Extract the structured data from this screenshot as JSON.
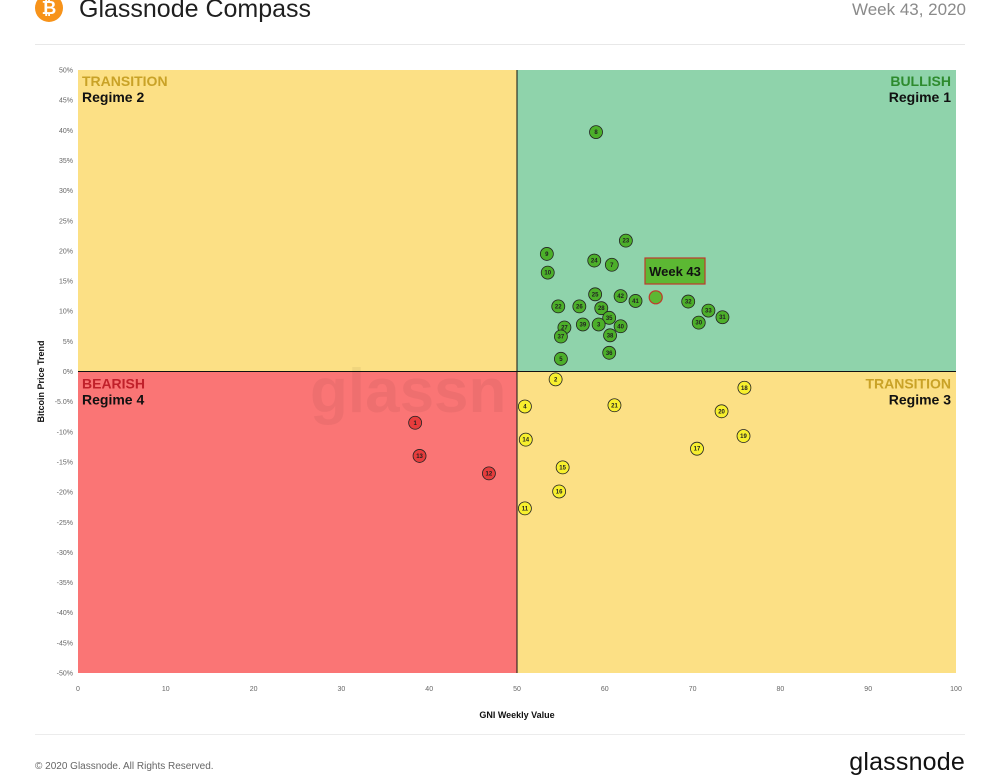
{
  "header": {
    "title": "Glassnode Compass",
    "week": "Week 43, 2020",
    "logo_icon": "bitcoin-icon"
  },
  "footer": {
    "copyright": "© 2020 Glassnode. All Rights Reserved.",
    "brand": "glassnode"
  },
  "watermark": "glassn",
  "colors": {
    "bullish": "#8fd3ab",
    "transition": "#fce085",
    "bearish": "#fa7575",
    "green_point": "#4caf2a",
    "yellow_point": "#f7ef2e",
    "red_point": "#e63c3c",
    "highlight_box": "#5cb833",
    "highlight_border": "#c0392b"
  },
  "chart_data": {
    "type": "scatter",
    "xlabel": "GNI  Weekly Value",
    "ylabel": "Bitcoin  Price Trend",
    "xlim": [
      0,
      100
    ],
    "ylim": [
      -50,
      50
    ],
    "x_ticks": [
      "0",
      "10",
      "20",
      "30",
      "40",
      "50",
      "60",
      "70",
      "80",
      "90",
      "100"
    ],
    "y_ticks": [
      "50%",
      "45%",
      "40%",
      "35%",
      "30%",
      "25%",
      "20%",
      "15%",
      "10%",
      "5%",
      "0%",
      "-5.0%",
      "-10%",
      "-15%",
      "-20%",
      "-25%",
      "-30%",
      "-35%",
      "-40%",
      "-45%",
      "-50%"
    ],
    "quadrants": [
      {
        "name": "top-left",
        "title": "TRANSITION",
        "subtitle": "Regime 2",
        "title_color": "#c9a227",
        "fill": "#fce085"
      },
      {
        "name": "top-right",
        "title": "BULLISH",
        "subtitle": "Regime 1",
        "title_color": "#2e8b2e",
        "fill": "#8fd3ab"
      },
      {
        "name": "bottom-left",
        "title": "BEARISH",
        "subtitle": "Regime 4",
        "title_color": "#c0202a",
        "fill": "#fa7575"
      },
      {
        "name": "bottom-right",
        "title": "TRANSITION",
        "subtitle": "Regime 3",
        "title_color": "#c9a227",
        "fill": "#fce085"
      }
    ],
    "points": [
      {
        "label": "8",
        "x": 59.0,
        "y": 39.7,
        "regime": "bullish"
      },
      {
        "label": "23",
        "x": 62.4,
        "y": 21.7,
        "regime": "bullish"
      },
      {
        "label": "9",
        "x": 53.4,
        "y": 19.5,
        "regime": "bullish"
      },
      {
        "label": "24",
        "x": 58.8,
        "y": 18.4,
        "regime": "bullish"
      },
      {
        "label": "7",
        "x": 60.8,
        "y": 17.7,
        "regime": "bullish"
      },
      {
        "label": "10",
        "x": 53.5,
        "y": 16.4,
        "regime": "bullish"
      },
      {
        "label": "25",
        "x": 58.9,
        "y": 12.8,
        "regime": "bullish"
      },
      {
        "label": "42",
        "x": 61.8,
        "y": 12.5,
        "regime": "bullish"
      },
      {
        "label": "41",
        "x": 63.5,
        "y": 11.7,
        "regime": "bullish"
      },
      {
        "label": "32",
        "x": 69.5,
        "y": 11.6,
        "regime": "bullish"
      },
      {
        "label": "22",
        "x": 54.7,
        "y": 10.8,
        "regime": "bullish"
      },
      {
        "label": "26",
        "x": 57.1,
        "y": 10.8,
        "regime": "bullish"
      },
      {
        "label": "28",
        "x": 59.6,
        "y": 10.5,
        "regime": "bullish"
      },
      {
        "label": "33",
        "x": 71.8,
        "y": 10.1,
        "regime": "bullish"
      },
      {
        "label": "35",
        "x": 60.5,
        "y": 8.9,
        "regime": "bullish"
      },
      {
        "label": "31",
        "x": 73.4,
        "y": 9.0,
        "regime": "bullish"
      },
      {
        "label": "30",
        "x": 70.7,
        "y": 8.1,
        "regime": "bullish"
      },
      {
        "label": "39",
        "x": 57.5,
        "y": 7.8,
        "regime": "bullish"
      },
      {
        "label": "3",
        "x": 59.3,
        "y": 7.8,
        "regime": "bullish"
      },
      {
        "label": "40",
        "x": 61.8,
        "y": 7.5,
        "regime": "bullish"
      },
      {
        "label": "27",
        "x": 55.4,
        "y": 7.3,
        "regime": "bullish"
      },
      {
        "label": "38",
        "x": 60.6,
        "y": 6.0,
        "regime": "bullish"
      },
      {
        "label": "37",
        "x": 55.0,
        "y": 5.8,
        "regime": "bullish"
      },
      {
        "label": "36",
        "x": 60.5,
        "y": 3.1,
        "regime": "bullish"
      },
      {
        "label": "5",
        "x": 55.0,
        "y": 2.1,
        "regime": "bullish"
      },
      {
        "label": "2",
        "x": 54.4,
        "y": -1.3,
        "regime": "transition"
      },
      {
        "label": "18",
        "x": 75.9,
        "y": -2.7,
        "regime": "transition"
      },
      {
        "label": "4",
        "x": 50.9,
        "y": -5.8,
        "regime": "transition"
      },
      {
        "label": "21",
        "x": 61.1,
        "y": -5.6,
        "regime": "transition"
      },
      {
        "label": "20",
        "x": 73.3,
        "y": -6.6,
        "regime": "transition"
      },
      {
        "label": "14",
        "x": 51.0,
        "y": -11.3,
        "regime": "transition"
      },
      {
        "label": "19",
        "x": 75.8,
        "y": -10.7,
        "regime": "transition"
      },
      {
        "label": "17",
        "x": 70.5,
        "y": -12.8,
        "regime": "transition"
      },
      {
        "label": "15",
        "x": 55.2,
        "y": -15.9,
        "regime": "transition"
      },
      {
        "label": "16",
        "x": 54.8,
        "y": -19.9,
        "regime": "transition"
      },
      {
        "label": "11",
        "x": 50.9,
        "y": -22.7,
        "regime": "transition"
      },
      {
        "label": "1",
        "x": 38.4,
        "y": -8.5,
        "regime": "bearish"
      },
      {
        "label": "13",
        "x": 38.9,
        "y": -14.0,
        "regime": "bearish"
      },
      {
        "label": "12",
        "x": 46.8,
        "y": -16.9,
        "regime": "bearish"
      }
    ],
    "highlight": {
      "label": "Week 43",
      "x": 65.8,
      "y": 12.3
    }
  }
}
